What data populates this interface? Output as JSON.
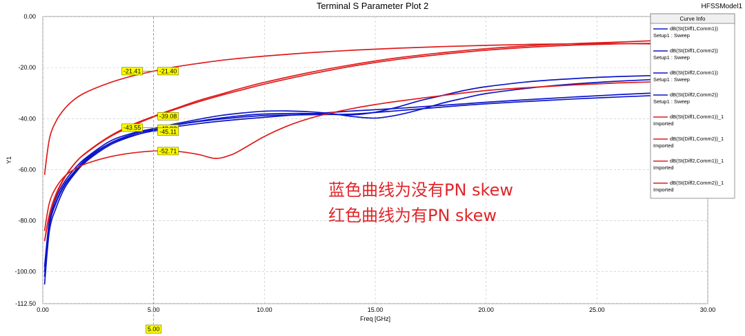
{
  "header": {
    "title": "Terminal S Parameter Plot 2",
    "model": "HFSSModel1"
  },
  "legend": {
    "heading": "Curve Info"
  },
  "annotation": {
    "line1": "蓝色曲线为没有PN skew",
    "line2": "红色曲线为有PN skew"
  },
  "colors": {
    "blue": "#0b14c8",
    "red": "#e01a1a",
    "grid": "#c0c0c0",
    "marker": "#ffff00"
  },
  "chart_data": {
    "type": "line",
    "title": "Terminal S Parameter Plot 2",
    "xlabel": "Freq [GHz]",
    "ylabel": "Y1",
    "xlim": [
      0,
      30
    ],
    "ylim": [
      -112.5,
      0
    ],
    "x_ticks": [
      0,
      5,
      10,
      15,
      20,
      25,
      30
    ],
    "x_tick_labels": [
      "0.00",
      "5.00",
      "10.00",
      "15.00",
      "20.00",
      "25.00",
      "30.00"
    ],
    "y_ticks": [
      0,
      -20,
      -40,
      -60,
      -80,
      -100,
      -112.5
    ],
    "y_tick_labels": [
      "0.00",
      "-20.00",
      "-40.00",
      "-60.00",
      "-80.00",
      "-100.00",
      "-112.50"
    ],
    "grid": true,
    "legend_position": "top-right",
    "cursor": {
      "x": 5,
      "label": "5.00"
    },
    "series": [
      {
        "name": "dB(St(Diff1,Comm1))",
        "sub": "Setup1 : Sweep",
        "color": "blue",
        "x": [
          0.08,
          0.3,
          0.6,
          1,
          1.5,
          2,
          3,
          4,
          5,
          6,
          7,
          8,
          9,
          10,
          11,
          12,
          13,
          14,
          15,
          16,
          17,
          18,
          19,
          20,
          22,
          24,
          26,
          28,
          30
        ],
        "y": [
          -105,
          -84,
          -75,
          -67,
          -61,
          -56.5,
          -50.5,
          -47,
          -44.5,
          -42.5,
          -41,
          -39.8,
          -38.8,
          -38.2,
          -38,
          -38,
          -38.3,
          -38.5,
          -37.5,
          -35.5,
          -33,
          -31,
          -29,
          -27.5,
          -25.5,
          -24.3,
          -23.5,
          -23,
          -22.8
        ]
      },
      {
        "name": "dB(St(Diff1,Comm2))",
        "sub": "Setup1 : Sweep",
        "color": "blue",
        "x": [
          0.08,
          0.3,
          0.6,
          1,
          1.5,
          2,
          3,
          4,
          5,
          6,
          7,
          8,
          9,
          10,
          11,
          12,
          13,
          14,
          15,
          16,
          17,
          18,
          19,
          20,
          22,
          24,
          26,
          28,
          30
        ],
        "y": [
          -98,
          -80,
          -71,
          -64.5,
          -59,
          -55,
          -49,
          -45.8,
          -43.9,
          -42,
          -40.3,
          -38.8,
          -37.8,
          -37.1,
          -37,
          -37.3,
          -38,
          -39.2,
          -39.8,
          -38.6,
          -36.5,
          -34,
          -32,
          -30.2,
          -28,
          -26.4,
          -25.3,
          -24.5,
          -24
        ]
      },
      {
        "name": "dB(St(Diff2,Comm1))",
        "sub": "Setup1 : Sweep",
        "color": "blue",
        "x": [
          0.08,
          0.3,
          0.6,
          1,
          1.5,
          2,
          3,
          4,
          5,
          6,
          7,
          8,
          9,
          10,
          11,
          12,
          13,
          14,
          15,
          16,
          17,
          18,
          19,
          20,
          22,
          24,
          26,
          28,
          30
        ],
        "y": [
          -102,
          -82,
          -73,
          -66,
          -60.5,
          -56,
          -50,
          -46.8,
          -44.8,
          -43.2,
          -42,
          -41,
          -40.2,
          -39.5,
          -38.8,
          -38.2,
          -37.6,
          -37,
          -36.5,
          -36,
          -35.4,
          -34.8,
          -34.2,
          -33.6,
          -32.5,
          -31.5,
          -30.6,
          -29.8,
          -29.2
        ]
      },
      {
        "name": "dB(St(Diff2,Comm2))",
        "sub": "Setup1 : Sweep",
        "color": "blue",
        "x": [
          0.08,
          0.3,
          0.6,
          1,
          1.5,
          2,
          3,
          4,
          5,
          6,
          7,
          8,
          9,
          10,
          11,
          12,
          13,
          14,
          15,
          16,
          17,
          18,
          19,
          20,
          22,
          24,
          26,
          28,
          30
        ],
        "y": [
          -100,
          -81,
          -72.5,
          -65.5,
          -60,
          -55.5,
          -49.8,
          -46.3,
          -44.1,
          -42.5,
          -41.2,
          -40.2,
          -39.4,
          -38.8,
          -38.6,
          -38.5,
          -38.4,
          -38.2,
          -37.6,
          -36.9,
          -36.2,
          -35.5,
          -34.8,
          -34.2,
          -33.2,
          -32.3,
          -31.5,
          -30.8,
          -30.3
        ]
      },
      {
        "name": "dB(St(Diff1,Comm1))_1",
        "sub": "Imported",
        "color": "red",
        "x": [
          0.08,
          0.3,
          0.6,
          1,
          1.5,
          2,
          3,
          4,
          5,
          6,
          7,
          8,
          9,
          10,
          12,
          14,
          16,
          18,
          20,
          22,
          24,
          26,
          28,
          30
        ],
        "y": [
          -62,
          -48,
          -41,
          -36,
          -32,
          -29.5,
          -26,
          -23.4,
          -21.4,
          -19.7,
          -18.4,
          -17.2,
          -16.3,
          -15.5,
          -14.2,
          -13.2,
          -12.4,
          -11.8,
          -11.3,
          -10.9,
          -10.7,
          -10.6,
          -10.8,
          -11.5
        ]
      },
      {
        "name": "dB(St(Diff1,Comm2))_1",
        "sub": "Imported",
        "color": "red",
        "x": [
          0.08,
          0.3,
          0.6,
          1,
          1.5,
          2,
          3,
          4,
          5,
          6,
          7,
          8,
          9,
          10,
          12,
          14,
          16,
          18,
          20,
          22,
          24,
          26,
          28,
          30
        ],
        "y": [
          -88,
          -78,
          -70,
          -63,
          -57,
          -53,
          -47,
          -42.5,
          -39.1,
          -36,
          -33,
          -30.5,
          -28,
          -25.8,
          -22,
          -18.8,
          -16.2,
          -14.2,
          -12.6,
          -11.4,
          -10.6,
          -10,
          -9.3,
          -8.5
        ]
      },
      {
        "name": "dB(St(Diff2,Comm1))_1",
        "sub": "Imported",
        "color": "red",
        "x": [
          0.08,
          0.3,
          0.6,
          1,
          1.5,
          2,
          3,
          4,
          5,
          6,
          7,
          7.8,
          8.5,
          9,
          10,
          11,
          12,
          13,
          14,
          15,
          16,
          18,
          20,
          22,
          24,
          26,
          28,
          30
        ],
        "y": [
          -84,
          -73,
          -67,
          -62.5,
          -59.5,
          -57.5,
          -55,
          -53.5,
          -52.7,
          -52.8,
          -54,
          -55.6,
          -54.2,
          -52,
          -47,
          -43,
          -40,
          -37.8,
          -36,
          -34.5,
          -33.2,
          -31,
          -29,
          -27.8,
          -26.8,
          -26,
          -25.5,
          -25
        ]
      },
      {
        "name": "dB(St(Diff2,Comm2))_1",
        "sub": "Imported",
        "color": "red",
        "x": [
          0.08,
          0.3,
          0.6,
          1,
          1.5,
          2,
          3,
          4,
          5,
          6,
          7,
          8,
          9,
          10,
          12,
          14,
          16,
          18,
          20,
          22,
          24,
          26,
          28,
          30
        ],
        "y": [
          -88,
          -77.5,
          -69.5,
          -62.8,
          -57,
          -53.2,
          -47.3,
          -43,
          -39.3,
          -36.3,
          -33.5,
          -31,
          -28.7,
          -26.5,
          -22.7,
          -19.4,
          -16.8,
          -14.8,
          -13.2,
          -12,
          -11.2,
          -10.7,
          -10.5,
          -10.6
        ]
      }
    ],
    "markers": [
      {
        "label": "-21.41",
        "x": 5,
        "y": -21.4,
        "side": "left"
      },
      {
        "label": "-21.40",
        "x": 5,
        "y": -21.4,
        "side": "right"
      },
      {
        "label": "-39.08",
        "x": 5,
        "y": -39.08,
        "side": "right"
      },
      {
        "label": "-43.55",
        "x": 5,
        "y": -43.55,
        "side": "left"
      },
      {
        "label": "-43.92",
        "x": 5,
        "y": -43.92,
        "side": "right"
      },
      {
        "label": "-45.11",
        "x": 5,
        "y": -45.11,
        "side": "right"
      },
      {
        "label": "-52.71",
        "x": 5,
        "y": -52.71,
        "side": "right"
      }
    ]
  }
}
